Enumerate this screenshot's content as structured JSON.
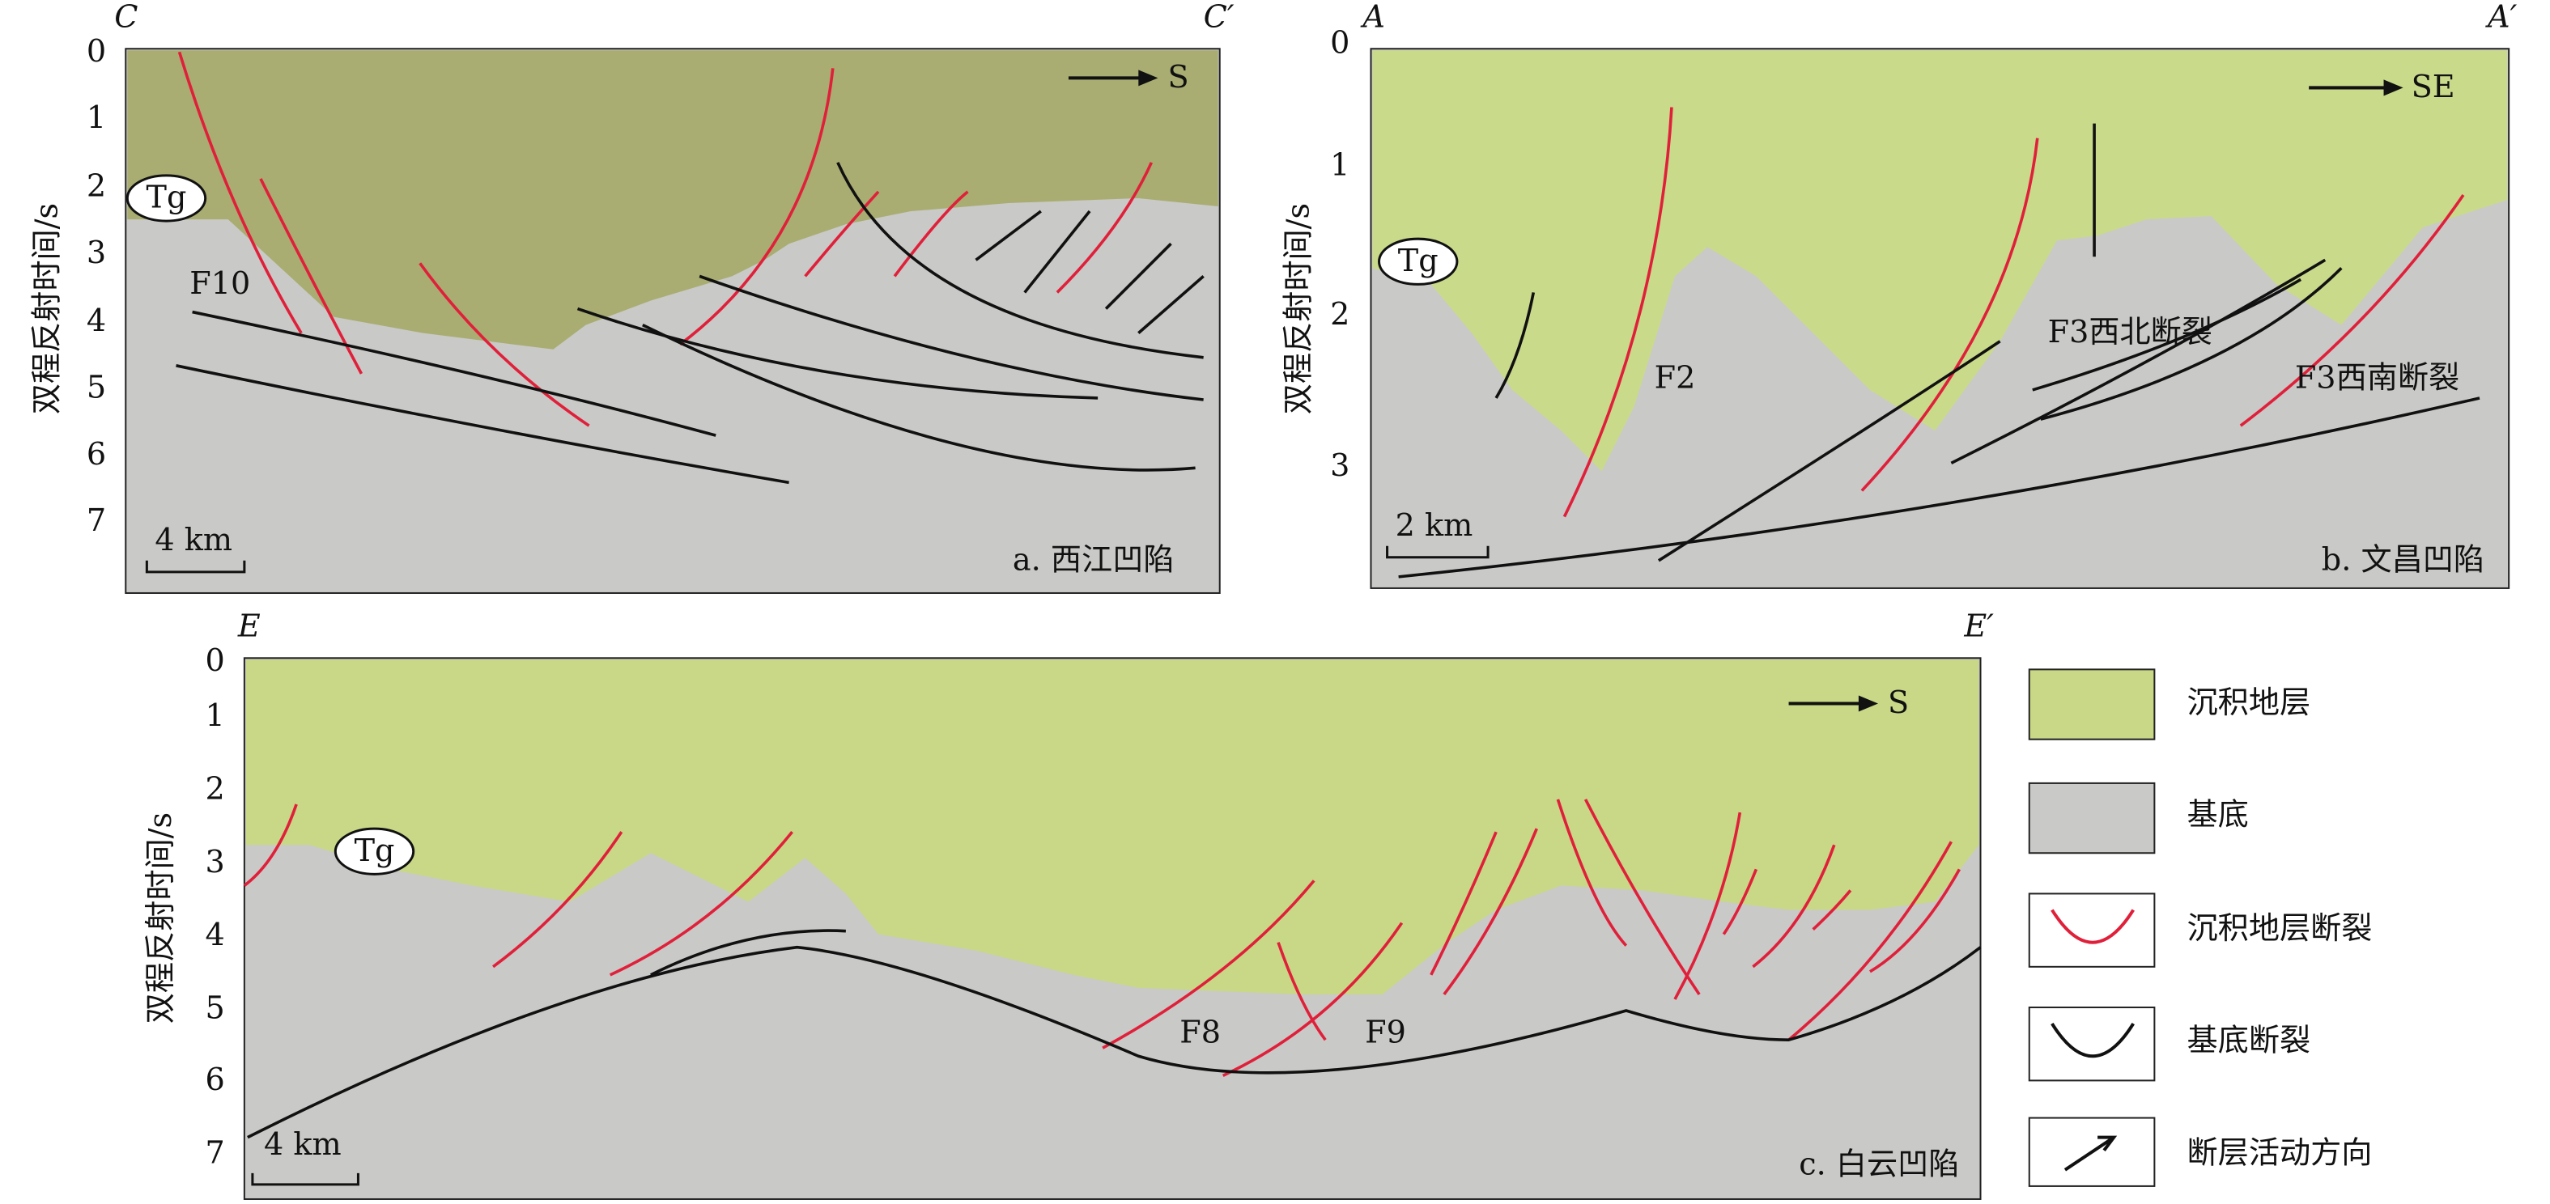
{
  "panels": [
    {
      "corner_left": "C",
      "corner_right": "C′",
      "y_axis_label": "双程反射时间/s",
      "yticks": [
        0,
        1,
        2,
        3,
        4,
        5,
        6,
        7
      ],
      "direction": "S",
      "scale": "4 km",
      "caption": "a. 西江凹陷",
      "labels": [
        "Tg",
        "F10"
      ]
    },
    {
      "corner_left": "A",
      "corner_right": "A′",
      "y_axis_label": "双程反射时间/s",
      "yticks": [
        0,
        1,
        2,
        3
      ],
      "direction": "SE",
      "scale": "2 km",
      "caption": "b. 文昌凹陷",
      "labels": [
        "Tg",
        "F2",
        "F3西北断裂",
        "F3西南断裂"
      ]
    },
    {
      "corner_left": "E",
      "corner_right": "E′",
      "y_axis_label": "双程反射时间/s",
      "yticks": [
        0,
        1,
        2,
        3,
        4,
        5,
        6,
        7
      ],
      "direction": "S",
      "scale": "4 km",
      "caption": "c. 白云凹陷",
      "labels": [
        "Tg",
        "F8",
        "F9"
      ]
    }
  ],
  "legend": [
    "沉积地层",
    "基底",
    "沉积地层断裂",
    "基底断裂",
    "断层活动方向"
  ]
}
